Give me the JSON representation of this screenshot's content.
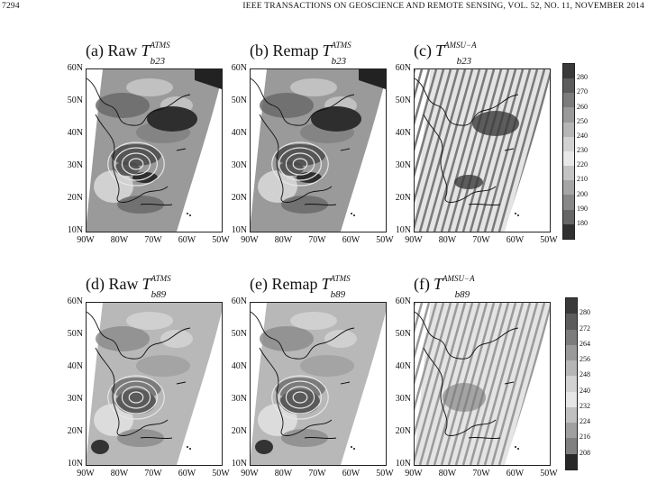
{
  "header": {
    "page_number": "7294",
    "journal": "IEEE TRANSACTIONS ON GEOSCIENCE AND REMOTE SENSING, VOL. 52, NO. 11, NOVEMBER 2014"
  },
  "panels": [
    {
      "prefix": "(a) Raw",
      "base": "T",
      "sup": "ATMS",
      "sub": "b23"
    },
    {
      "prefix": "(b) Remap",
      "base": "T",
      "sup": "ATMS",
      "sub": "b23"
    },
    {
      "prefix": "(c)",
      "base": "T",
      "sup": "AMSU−A",
      "sub": "b23"
    },
    {
      "prefix": "(d) Raw",
      "base": "T",
      "sup": "ATMS",
      "sub": "b89"
    },
    {
      "prefix": "(e) Remap",
      "base": "T",
      "sup": "ATMS",
      "sub": "b89"
    },
    {
      "prefix": "(f)",
      "base": "T",
      "sup": "AMSU−A",
      "sub": "b89"
    }
  ],
  "axes": {
    "lat_labels": [
      "60N",
      "50N",
      "40N",
      "30N",
      "20N",
      "10N"
    ],
    "lon_labels": [
      "90W",
      "80W",
      "70W",
      "60W",
      "50W"
    ]
  },
  "colorbars": [
    {
      "ticks": [
        "280",
        "270",
        "260",
        "250",
        "240",
        "230",
        "220",
        "210",
        "200",
        "190",
        "180"
      ],
      "colors": [
        "#3a3a3a",
        "#5c5c5c",
        "#7c7c7c",
        "#9a9a9a",
        "#b6b6b6",
        "#d2d2d2",
        "#e8e8e8",
        "#c4c4c4",
        "#a6a6a6",
        "#888888",
        "#666666",
        "#303030"
      ]
    },
    {
      "ticks": [
        "280",
        "272",
        "264",
        "256",
        "248",
        "240",
        "232",
        "224",
        "216",
        "208"
      ],
      "colors": [
        "#3a3a3a",
        "#5c5c5c",
        "#7c7c7c",
        "#9a9a9a",
        "#b6b6b6",
        "#d2d2d2",
        "#e6e6e6",
        "#c0c0c0",
        "#a0a0a0",
        "#808080",
        "#282828"
      ]
    }
  ]
}
